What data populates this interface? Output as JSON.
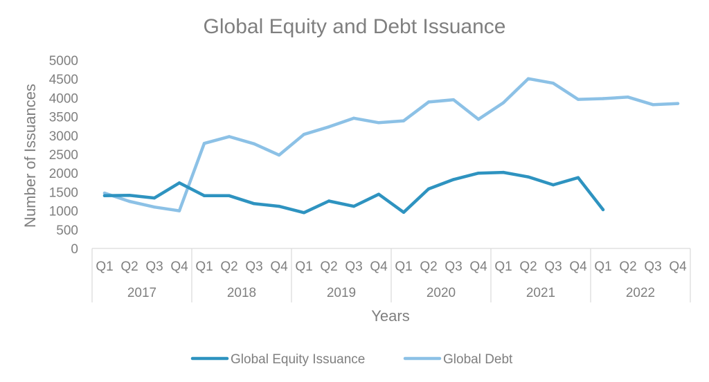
{
  "chart_data": {
    "type": "line",
    "title": "Global Equity and Debt Issuance",
    "xlabel": "Years",
    "ylabel": "Number of Issuances",
    "ylim": [
      0,
      5000
    ],
    "yticks": [
      0,
      500,
      1000,
      1500,
      2000,
      2500,
      3000,
      3500,
      4000,
      4500,
      5000
    ],
    "grid": false,
    "legend_position": "bottom",
    "quarters": [
      "Q1",
      "Q2",
      "Q3",
      "Q4"
    ],
    "years": [
      "2017",
      "2018",
      "2019",
      "2020",
      "2021",
      "2022"
    ],
    "categories": [
      "2017 Q1",
      "2017 Q2",
      "2017 Q3",
      "2017 Q4",
      "2018 Q1",
      "2018 Q2",
      "2018 Q3",
      "2018 Q4",
      "2019 Q1",
      "2019 Q2",
      "2019 Q3",
      "2019 Q4",
      "2020 Q1",
      "2020 Q2",
      "2020 Q3",
      "2020 Q4",
      "2021 Q1",
      "2021 Q2",
      "2021 Q3",
      "2021 Q4",
      "2022 Q1",
      "2022 Q2",
      "2022 Q3",
      "2022 Q4"
    ],
    "series": [
      {
        "name": "Global Equity Issuance",
        "color": "#2e93c0",
        "values": [
          1400,
          1410,
          1340,
          1740,
          1400,
          1400,
          1190,
          1120,
          950,
          1260,
          1120,
          1440,
          960,
          1580,
          1830,
          2000,
          2020,
          1900,
          1690,
          1880,
          1030,
          null,
          null,
          null
        ]
      },
      {
        "name": "Global Debt",
        "color": "#8cc1e6",
        "values": [
          1470,
          1250,
          1100,
          1000,
          2790,
          2970,
          2780,
          2480,
          3030,
          3230,
          3460,
          3340,
          3390,
          3890,
          3950,
          3430,
          3870,
          4510,
          4390,
          3960,
          3980,
          4020,
          3820,
          3850
        ]
      }
    ]
  }
}
